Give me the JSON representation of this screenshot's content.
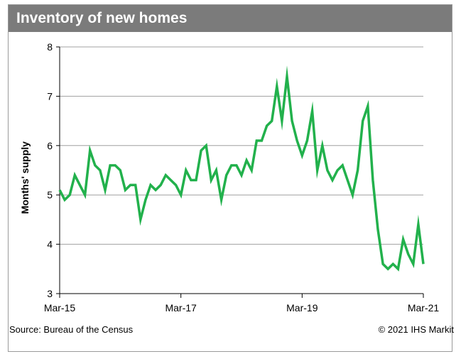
{
  "header": {
    "title": "Inventory of new homes"
  },
  "footer": {
    "source": "Source:  Bureau of the Census",
    "copyright": "© 2021 IHS Markit"
  },
  "chart_data": {
    "type": "line",
    "title": "Inventory of new homes",
    "xlabel": "",
    "ylabel": "Months' supply",
    "ylim": [
      3,
      8
    ],
    "yticks": [
      "3",
      "4",
      "5",
      "6",
      "7",
      "8"
    ],
    "xticks": [
      "Mar-15",
      "Mar-17",
      "Mar-19",
      "Mar-21"
    ],
    "x_start": "Mar-15",
    "x_end": "Mar-21",
    "grid": true,
    "series": [
      {
        "color": "#22b14c",
        "values": [
          5.1,
          4.9,
          5.0,
          5.4,
          5.2,
          5.0,
          5.9,
          5.6,
          5.5,
          5.1,
          5.6,
          5.6,
          5.5,
          5.1,
          5.2,
          5.2,
          4.5,
          4.9,
          5.2,
          5.1,
          5.2,
          5.4,
          5.3,
          5.2,
          5.0,
          5.5,
          5.3,
          5.3,
          5.9,
          6.0,
          5.3,
          5.5,
          4.9,
          5.4,
          5.6,
          5.6,
          5.4,
          5.7,
          5.5,
          6.1,
          6.1,
          6.4,
          6.5,
          7.2,
          6.5,
          7.4,
          6.5,
          6.1,
          5.8,
          6.1,
          6.7,
          5.5,
          6.0,
          5.5,
          5.3,
          5.5,
          5.6,
          5.3,
          5.0,
          5.5,
          6.5,
          6.8,
          5.3,
          4.3,
          3.6,
          3.5,
          3.6,
          3.5,
          4.1,
          3.8,
          3.6,
          4.4,
          3.6
        ]
      }
    ]
  },
  "colors": {
    "title_bar": "#7b7b7b",
    "line": "#22b14c",
    "grid": "#a0a0a0"
  }
}
